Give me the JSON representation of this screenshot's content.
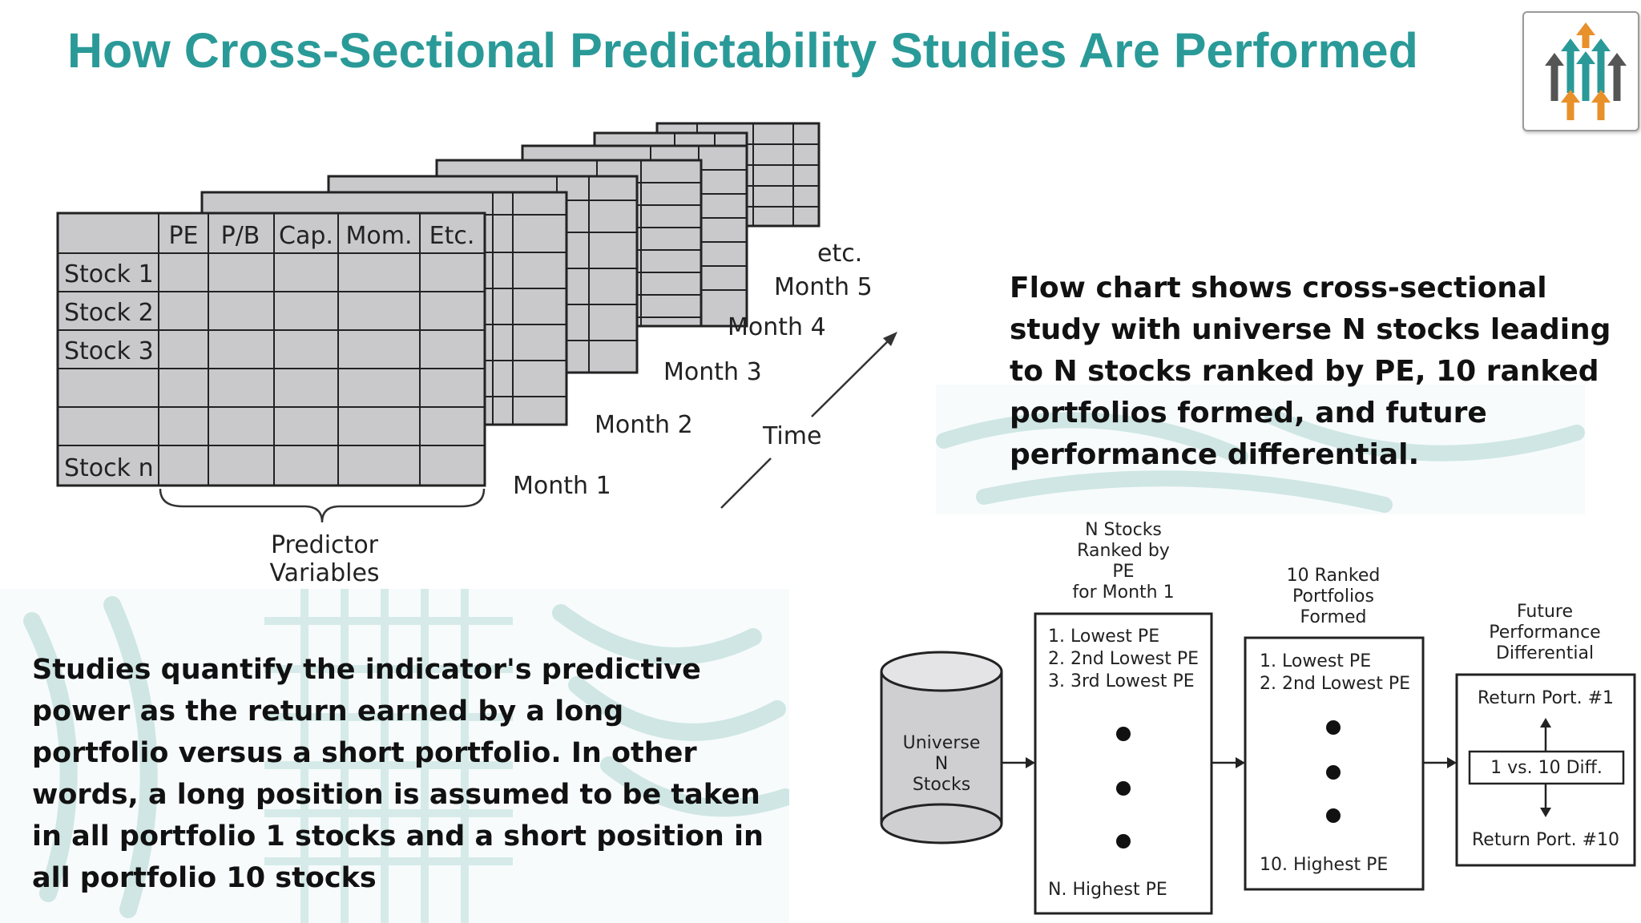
{
  "slide": {
    "title": "How Cross-Sectional Predictability Studies Are Performed",
    "accent_color": "#2a9a98",
    "logo": {
      "icon": "rising-arrows-logo-icon",
      "colors": [
        "#e8902a",
        "#2a9a98",
        "#555555"
      ]
    }
  },
  "panel_table": {
    "columns": [
      "PE",
      "P/B",
      "Cap.",
      "Mom.",
      "Etc."
    ],
    "rows": [
      "Stock 1",
      "Stock 2",
      "Stock 3",
      "",
      "",
      "Stock n"
    ],
    "months": [
      "Month 1",
      "Month 2",
      "Month 3",
      "Month 4",
      "Month 5",
      "etc."
    ],
    "time_label": "Time",
    "brace_label_line1": "Predictor",
    "brace_label_line2": "Variables"
  },
  "flow_caption": "Flow chart shows cross-sectional study with universe N stocks leading to N stocks ranked by PE, 10 ranked portfolios formed, and future performance differential.",
  "bottom_caption": "Studies quantify the indicator's predictive power as the return earned by a long portfolio versus a short portfolio. In other words, a long position is assumed to be taken in all portfolio 1 stocks and a short position in all portfolio 10 stocks",
  "flowchart": {
    "universe": {
      "line1": "Universe",
      "line2": "N",
      "line3": "Stocks"
    },
    "ranked": {
      "header": [
        "N Stocks",
        "Ranked by",
        "PE",
        "for Month 1"
      ],
      "items": [
        "1. Lowest PE",
        "2. 2nd Lowest PE",
        "3. 3rd Lowest PE"
      ],
      "last": "N. Highest PE"
    },
    "portfolios": {
      "header": [
        "10 Ranked",
        "Portfolios",
        "Formed"
      ],
      "items": [
        "1. Lowest PE",
        "2. 2nd Lowest PE"
      ],
      "last": "10. Highest PE"
    },
    "performance": {
      "header": [
        "Future",
        "Performance",
        "Differential"
      ],
      "top": "Return Port. #1",
      "diff": "1 vs. 10 Diff.",
      "bottom": "Return Port. #10"
    }
  }
}
